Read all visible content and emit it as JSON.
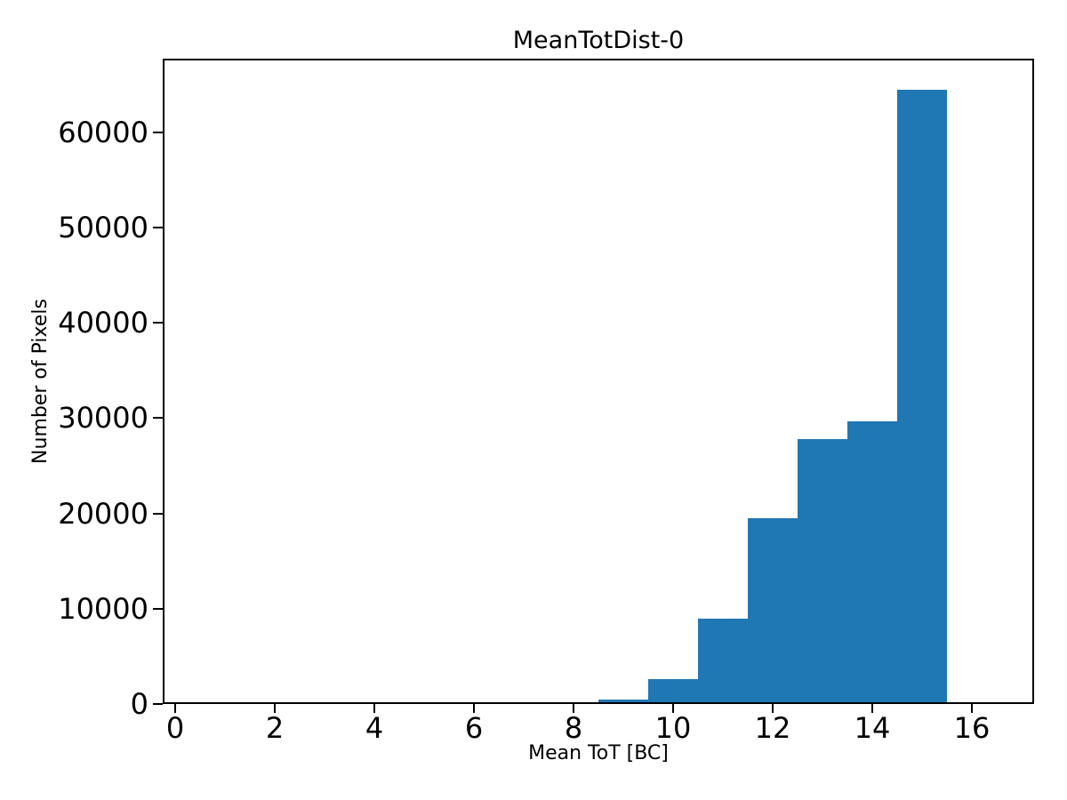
{
  "figure": {
    "background": "#ffffff"
  },
  "chart_data": {
    "type": "bar",
    "subtype": "histogram",
    "title": "MeanTotDist-0",
    "xlabel": "Mean ToT [BC]",
    "ylabel": "Number of Pixels",
    "bar_color": "#1f77b4",
    "axis_color": "#000000",
    "grid": false,
    "legend": null,
    "bin_width": 1,
    "bin_centers": [
      1,
      2,
      3,
      4,
      5,
      6,
      7,
      8,
      9,
      10,
      11,
      12,
      13,
      14,
      15,
      16
    ],
    "values": [
      0,
      0,
      0,
      0,
      0,
      0,
      0,
      200,
      500,
      2600,
      9000,
      19500,
      27800,
      29700,
      64400,
      0
    ],
    "xlim": [
      -0.25,
      17.25
    ],
    "ylim": [
      0,
      67700
    ],
    "xticks": [
      0,
      2,
      4,
      6,
      8,
      10,
      12,
      14,
      16
    ],
    "yticks": [
      0,
      10000,
      20000,
      30000,
      40000,
      50000,
      60000
    ]
  }
}
